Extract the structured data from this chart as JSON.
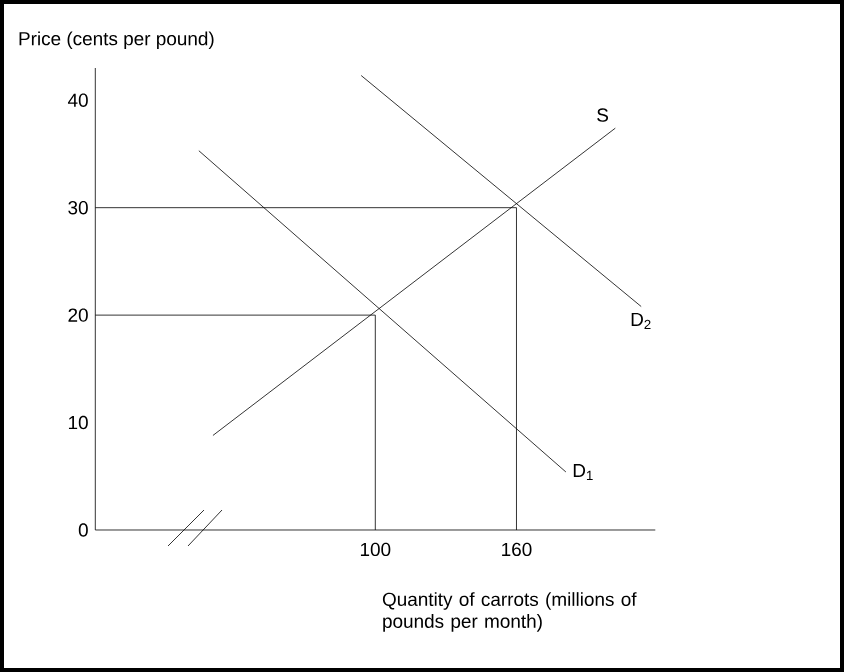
{
  "chart_data": {
    "type": "line",
    "xlabel": "Quantity of carrots (millions of pounds per month)",
    "ylabel": "Price (cents per pound)",
    "xlim": [
      -19,
      219
    ],
    "ylim": [
      0,
      43
    ],
    "xticks": [
      100,
      160
    ],
    "yticks": [
      0,
      10,
      20,
      30,
      40
    ],
    "legend": false,
    "grid": false,
    "marker": "none",
    "line_style": "solid",
    "series": [
      {
        "name": "S",
        "color": "#000000",
        "x": [
          31,
          202
        ],
        "values": [
          8.8,
          37.4
        ]
      },
      {
        "name": "D$_{2}$",
        "color": "#000000",
        "x": [
          94,
          213
        ],
        "values": [
          42.3,
          20.8
        ]
      },
      {
        "name": "D$_{1}$",
        "color": "#000000",
        "x": [
          25,
          181
        ],
        "values": [
          35.3,
          5.4
        ]
      },
      {
        "color": "#000000",
        "x": [
          -19,
          160,
          160
        ],
        "values": [
          30,
          30,
          0
        ]
      },
      {
        "color": "#000000",
        "x": [
          -19,
          100,
          100
        ],
        "values": [
          20,
          20,
          0
        ]
      }
    ]
  }
}
